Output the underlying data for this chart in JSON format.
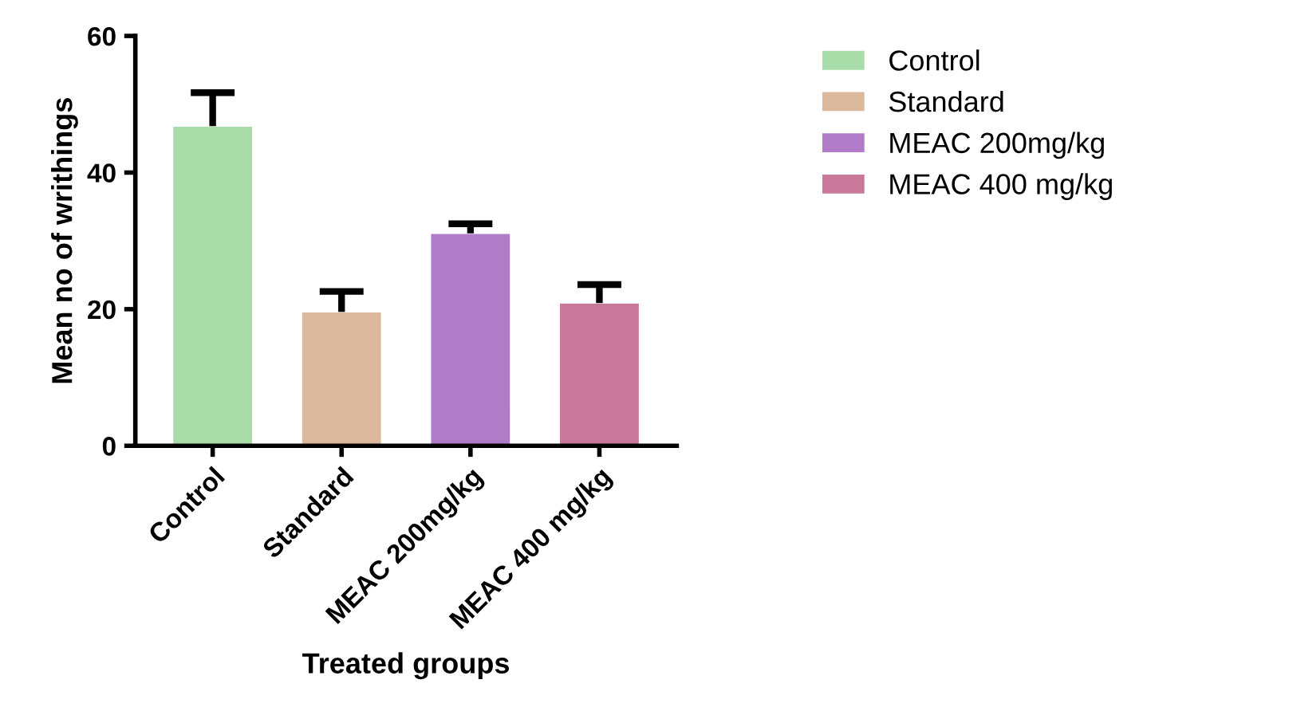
{
  "chart_data": {
    "type": "bar",
    "xlabel": "Treated groups",
    "ylabel": "Mean no of writhings",
    "categories": [
      "Control",
      "Standard",
      "MEAC 200mg/kg",
      "MEAC 400 mg/kg"
    ],
    "series": [
      {
        "name": "Control",
        "color": "#a8dca8",
        "values": [
          46.8,
          null,
          null,
          null
        ],
        "errors": [
          [
            46.8,
            51.7
          ],
          null,
          null,
          null
        ]
      },
      {
        "name": "Standard",
        "color": "#dcb89c",
        "values": [
          null,
          19.6,
          null,
          null
        ],
        "errors": [
          null,
          [
            19.6,
            22.6
          ],
          null,
          null
        ]
      },
      {
        "name": "MEAC 200mg/kg",
        "color": "#b07cc8",
        "values": [
          null,
          null,
          31.1,
          null
        ],
        "errors": [
          null,
          null,
          [
            31.1,
            32.5
          ],
          null
        ]
      },
      {
        "name": "MEAC 400 mg/kg",
        "color": "#c87898",
        "values": [
          null,
          null,
          null,
          20.9
        ],
        "errors": [
          null,
          null,
          null,
          [
            20.9,
            23.6
          ]
        ]
      }
    ],
    "ylim": [
      0,
      60
    ],
    "yticks": [
      0,
      20,
      40,
      60
    ],
    "grid": false,
    "legend": "right"
  }
}
